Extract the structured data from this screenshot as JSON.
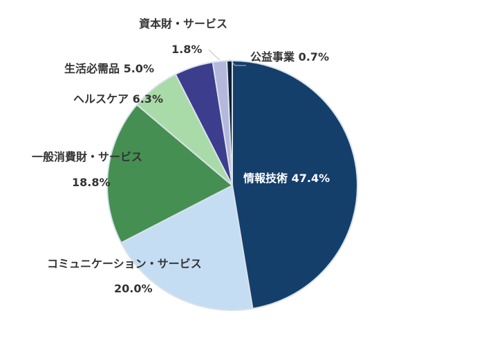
{
  "chart_data": {
    "type": "pie",
    "start": "12 o'clock, clockwise",
    "slices": [
      {
        "label": "情報技術",
        "value": 47.4,
        "value_label": "47.4%",
        "color": "#153f6b"
      },
      {
        "label": "コミュニケーション・サービス",
        "value": 20.0,
        "value_label": "20.0%",
        "color": "#c5ddf3"
      },
      {
        "label": "一般消費財・サービス",
        "value": 18.8,
        "value_label": "18.8%",
        "color": "#458f52"
      },
      {
        "label": "ヘルスケア",
        "value": 6.3,
        "value_label": "6.3%",
        "color": "#a9dba8"
      },
      {
        "label": "生活必需品",
        "value": 5.0,
        "value_label": "5.0%",
        "color": "#3c3d8d"
      },
      {
        "label": "資本財・サービス",
        "value": 1.8,
        "value_label": "1.8%",
        "color": "#b5b7dd"
      },
      {
        "label": "公益事業",
        "value": 0.7,
        "value_label": "0.7%",
        "color": "#0c1f38"
      }
    ]
  }
}
